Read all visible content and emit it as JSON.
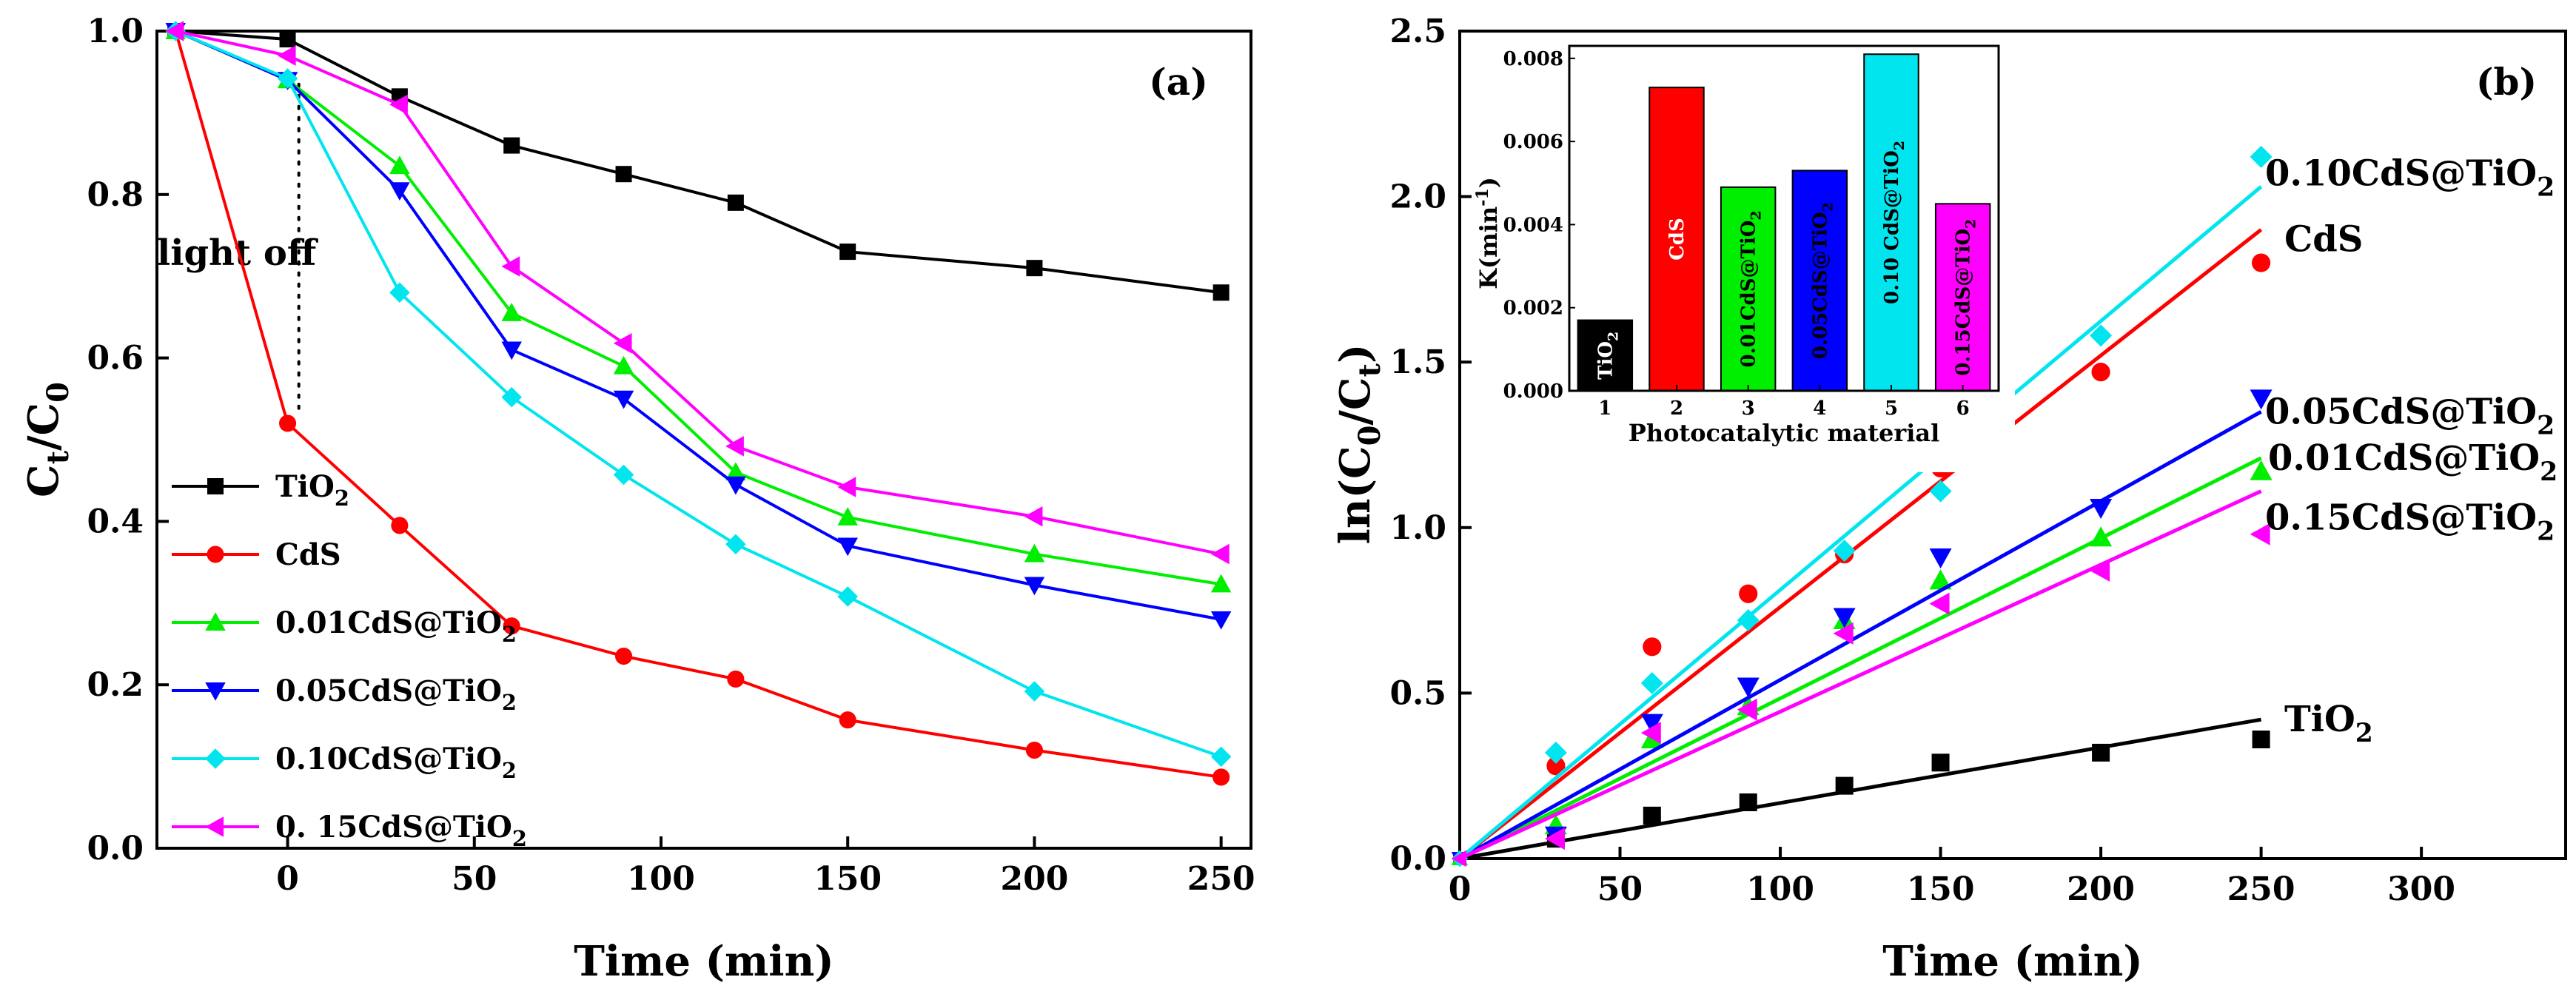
{
  "chart_data": [
    {
      "type": "line",
      "panel_label": "(a)",
      "xlabel": "Time (min)",
      "ylabel": {
        "main": "C",
        "sub1": "t",
        "mid": "/C",
        "sub2": "0"
      },
      "xlim": [
        -35,
        258
      ],
      "ylim": [
        0,
        1.0
      ],
      "xticks": [
        0,
        50,
        100,
        150,
        200,
        250
      ],
      "yticks": [
        0.0,
        0.2,
        0.4,
        0.6,
        0.8,
        1.0
      ],
      "annotation": "light off",
      "legend_position": "bottom-left",
      "series": [
        {
          "name": {
            "base": "TiO",
            "sub": "2"
          },
          "marker": "square",
          "color": "#000000",
          "x": [
            -30,
            0,
            30,
            60,
            90,
            120,
            150,
            200,
            250
          ],
          "y": [
            1.0,
            0.99,
            0.92,
            0.86,
            0.825,
            0.79,
            0.73,
            0.71,
            0.68
          ]
        },
        {
          "name": {
            "base": "CdS",
            "sub": ""
          },
          "marker": "circle",
          "color": "#ff0000",
          "x": [
            -30,
            0,
            30,
            60,
            90,
            120,
            150,
            200,
            250
          ],
          "y": [
            1.0,
            0.52,
            0.395,
            0.272,
            0.235,
            0.207,
            0.157,
            0.12,
            0.087
          ]
        },
        {
          "name": {
            "base": "0.01CdS@TiO",
            "sub": "2"
          },
          "marker": "triangle-up",
          "color": "#00ee00",
          "x": [
            -30,
            0,
            30,
            60,
            90,
            120,
            150,
            200,
            250
          ],
          "y": [
            1.0,
            0.94,
            0.835,
            0.655,
            0.59,
            0.46,
            0.405,
            0.36,
            0.323
          ]
        },
        {
          "name": {
            "base": "0.05CdS@TiO",
            "sub": "2"
          },
          "marker": "triangle-down",
          "color": "#0000ff",
          "x": [
            -30,
            0,
            30,
            60,
            90,
            120,
            150,
            200,
            250
          ],
          "y": [
            1.0,
            0.94,
            0.805,
            0.61,
            0.55,
            0.445,
            0.37,
            0.322,
            0.28
          ]
        },
        {
          "name": {
            "base": "0.10CdS@TiO",
            "sub": "2"
          },
          "marker": "diamond",
          "color": "#00e5ee",
          "x": [
            -30,
            0,
            30,
            60,
            90,
            120,
            150,
            200,
            250
          ],
          "y": [
            1.0,
            0.942,
            0.68,
            0.552,
            0.457,
            0.372,
            0.308,
            0.192,
            0.112
          ]
        },
        {
          "name": {
            "base": "0. 15CdS@TiO",
            "sub": "2"
          },
          "marker": "triangle-left",
          "color": "#ff00ff",
          "x": [
            -30,
            0,
            30,
            60,
            90,
            120,
            150,
            200,
            250
          ],
          "y": [
            1.0,
            0.97,
            0.91,
            0.712,
            0.618,
            0.492,
            0.442,
            0.406,
            0.36
          ]
        }
      ]
    },
    {
      "type": "scatter",
      "panel_label": "(b)",
      "xlabel": "Time (min)",
      "ylabel": {
        "pre": "ln(C",
        "sub1": "0",
        "mid": "/C",
        "sub2": "t",
        "post": ")"
      },
      "xlim": [
        0,
        345
      ],
      "ylim": [
        0,
        2.5
      ],
      "xticks": [
        0,
        50,
        100,
        150,
        200,
        250,
        300
      ],
      "yticks": [
        0.0,
        0.5,
        1.0,
        1.5,
        2.0,
        2.5
      ],
      "panel_label_position": "top-right",
      "series": [
        {
          "name": {
            "base": "TiO",
            "sub": "2"
          },
          "marker": "square",
          "color": "#000000",
          "x": [
            30,
            60,
            90,
            120,
            150,
            200,
            250
          ],
          "y": [
            0.06,
            0.13,
            0.17,
            0.22,
            0.29,
            0.32,
            0.36
          ],
          "fit_end": 0.42,
          "label_y": 0.42
        },
        {
          "name": {
            "base": "CdS",
            "sub": ""
          },
          "marker": "circle",
          "color": "#ff0000",
          "x": [
            30,
            60,
            90,
            120,
            150,
            200,
            250
          ],
          "y": [
            0.28,
            0.64,
            0.8,
            0.92,
            1.18,
            1.47,
            1.8
          ],
          "fit_end": 1.9,
          "label_y": 1.87
        },
        {
          "name": {
            "base": "0.01CdS@TiO",
            "sub": "2"
          },
          "marker": "triangle-up",
          "color": "#00ee00",
          "x": [
            30,
            60,
            90,
            120,
            150,
            200,
            250
          ],
          "y": [
            0.1,
            0.36,
            0.46,
            0.72,
            0.84,
            0.97,
            1.17
          ],
          "fit_end": 1.21,
          "label_y": 1.21
        },
        {
          "name": {
            "base": "0.05CdS@TiO",
            "sub": "2"
          },
          "marker": "triangle-down",
          "color": "#0000ff",
          "x": [
            30,
            60,
            90,
            120,
            150,
            200,
            250
          ],
          "y": [
            0.07,
            0.41,
            0.52,
            0.73,
            0.91,
            1.06,
            1.39
          ],
          "fit_end": 1.35,
          "label_y": 1.35
        },
        {
          "name": {
            "base": "0.10CdS@TiO",
            "sub": "2"
          },
          "marker": "diamond",
          "color": "#00e5ee",
          "x": [
            30,
            60,
            90,
            120,
            150,
            200,
            250
          ],
          "y": [
            0.32,
            0.53,
            0.72,
            0.93,
            1.11,
            1.58,
            2.12
          ],
          "fit_end": 2.03,
          "label_y": 2.07
        },
        {
          "name": {
            "base": "0.15CdS@TiO",
            "sub": "2"
          },
          "marker": "triangle-left",
          "color": "#ff00ff",
          "x": [
            30,
            60,
            90,
            120,
            150,
            200,
            250
          ],
          "y": [
            0.06,
            0.38,
            0.45,
            0.68,
            0.77,
            0.87,
            0.98
          ],
          "fit_end": 1.11,
          "label_y": 1.03
        }
      ],
      "inset": {
        "type": "bar",
        "xlabel": "Photocatalytic material",
        "ylabel": {
          "main": "K(min",
          "sup": "-1",
          "post": ")"
        },
        "ylim": [
          0,
          0.0083
        ],
        "yticks": [
          "0.000",
          "0.002",
          "0.004",
          "0.006",
          "0.008"
        ],
        "categories": [
          "1",
          "2",
          "3",
          "4",
          "5",
          "6"
        ],
        "values": [
          0.0017,
          0.0073,
          0.0049,
          0.0053,
          0.0081,
          0.0045
        ],
        "colors": [
          "#000000",
          "#ff0000",
          "#00ee00",
          "#0000ff",
          "#00e5ee",
          "#ff00ff"
        ],
        "bar_labels": [
          {
            "base": "TiO",
            "sub": "2",
            "color": "#ffffff"
          },
          {
            "base": "CdS",
            "sub": "",
            "color": "#ffffff"
          },
          {
            "base": "0.01CdS@TiO",
            "sub": "2",
            "color": "#000000"
          },
          {
            "base": "0.05CdS@TiO",
            "sub": "2",
            "color": "#000000"
          },
          {
            "base": "0.10 CdS@TiO",
            "sub": "2",
            "color": "#000000"
          },
          {
            "base": "0.15CdS@TiO",
            "sub": "2",
            "color": "#000000"
          }
        ]
      }
    }
  ]
}
